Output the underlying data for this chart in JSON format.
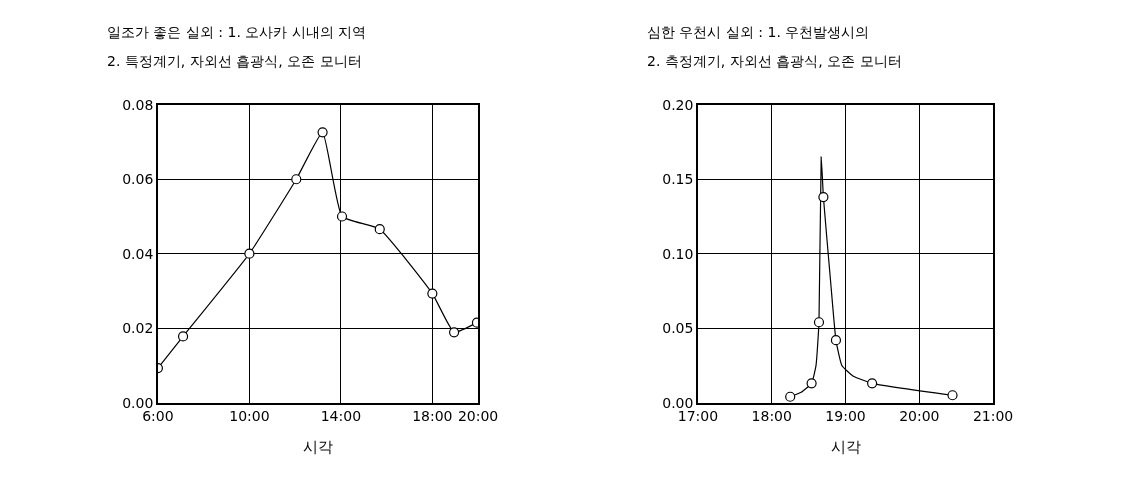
{
  "chart_data": [
    {
      "type": "line",
      "title": "일조가 좋은 실외 : 1. 오사카 시내의 지역",
      "subtitle": "2. 특정계기, 자외선 흡광식, 오존 모니터",
      "xlabel": "시각",
      "marker": "circle",
      "grid": true,
      "xlim": [
        6,
        20
      ],
      "xticks": [
        {
          "value": 6,
          "label": "6:00"
        },
        {
          "value": 10,
          "label": "10:00"
        },
        {
          "value": 14,
          "label": "14:00"
        },
        {
          "value": 18,
          "label": "18:00"
        },
        {
          "value": 20,
          "label": "20:00"
        }
      ],
      "ylim": [
        0,
        0.08
      ],
      "yticks": [
        {
          "value": 0,
          "label": "0.00"
        },
        {
          "value": 0.02,
          "label": "0.02"
        },
        {
          "value": 0.04,
          "label": "0.04"
        },
        {
          "value": 0.06,
          "label": "0.06"
        },
        {
          "value": 0.08,
          "label": "0.08"
        }
      ],
      "series": [
        {
          "color": "#000000",
          "x": [
            6,
            7.1,
            10,
            12.05,
            13.2,
            14.05,
            15.7,
            18,
            18.95,
            19.95
          ],
          "values": [
            0.0093,
            0.0178,
            0.04,
            0.06,
            0.0726,
            0.05,
            0.0466,
            0.0293,
            0.0189,
            0.0215
          ]
        }
      ]
    },
    {
      "type": "line",
      "title": "심한 우천시 실외 : 1. 우천발생시의",
      "subtitle": "2. 측정계기, 자외선 흡광식, 오존 모니터",
      "xlabel": "시각",
      "grid": true,
      "xlim": [
        17,
        21
      ],
      "xticks": [
        {
          "value": 17,
          "label": "17:00"
        },
        {
          "value": 18,
          "label": "18:00"
        },
        {
          "value": 19,
          "label": "19:00"
        },
        {
          "value": 20,
          "label": "20:00"
        },
        {
          "value": 21,
          "label": "21:00"
        }
      ],
      "ylim": [
        0,
        0.2
      ],
      "yticks": [
        {
          "value": 0,
          "label": "0.00"
        },
        {
          "value": 0.05,
          "label": "0.05"
        },
        {
          "value": 0.1,
          "label": "0.10"
        },
        {
          "value": 0.15,
          "label": "0.15"
        },
        {
          "value": 0.2,
          "label": "0.20"
        }
      ],
      "series": [
        {
          "type": "line",
          "marker": "none",
          "color": "#000000",
          "x": [
            18.25,
            18.4,
            18.54,
            18.6,
            18.64,
            18.67,
            18.7,
            18.8,
            18.87,
            18.95,
            19.1,
            19.36,
            20.45
          ],
          "values": [
            0.004,
            0.007,
            0.013,
            0.025,
            0.054,
            0.165,
            0.138,
            0.08,
            0.042,
            0.025,
            0.018,
            0.013,
            0.005
          ]
        },
        {
          "type": "scatter",
          "marker": "circle",
          "color": "#000000",
          "x": [
            18.25,
            18.54,
            18.64,
            18.7,
            18.87,
            19.36,
            20.45
          ],
          "values": [
            0.004,
            0.013,
            0.054,
            0.138,
            0.042,
            0.013,
            0.005
          ]
        }
      ]
    }
  ]
}
